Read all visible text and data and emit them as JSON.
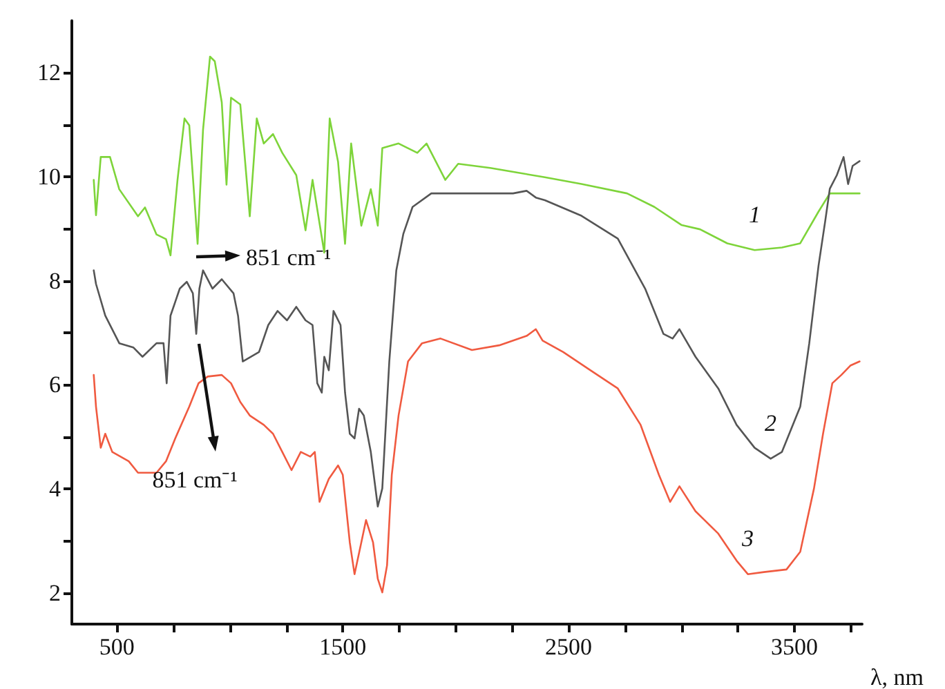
{
  "chart_data": {
    "type": "line",
    "xlabel": "λ, nm",
    "xlim": [
      300,
      3800
    ],
    "xticks": [
      500,
      {
        "value": 750,
        "label": null
      },
      {
        "value": 1000,
        "label": null
      },
      {
        "value": 1250,
        "label": null
      },
      1500,
      {
        "value": 1750,
        "label": null
      },
      {
        "value": 2000,
        "label": null
      },
      {
        "value": 2250,
        "label": null
      },
      2500,
      {
        "value": 2750,
        "label": null
      },
      {
        "value": 3000,
        "label": null
      },
      {
        "value": 3250,
        "label": null
      },
      3500,
      {
        "value": 3750,
        "label": null
      }
    ],
    "ylim": [
      1.4,
      13
    ],
    "yticks": [
      2,
      {
        "value": 3,
        "label": null
      },
      4,
      {
        "value": 5,
        "label": null
      },
      6,
      {
        "value": 7,
        "label": null
      },
      8,
      {
        "value": 9,
        "label": null
      },
      10,
      {
        "value": 11,
        "label": null
      },
      12
    ],
    "grid": false,
    "legend": false,
    "marker": "none",
    "line_style": "solid",
    "series": [
      {
        "name": "1",
        "color": "#7ed43a",
        "x": [
          397,
          407,
          428,
          469,
          510,
          593,
          624,
          675,
          717,
          737,
          768,
          799,
          820,
          857,
          881,
          912,
          933,
          964,
          985,
          1005,
          1046,
          1088,
          1119,
          1150,
          1191,
          1232,
          1294,
          1335,
          1366,
          1418,
          1442,
          1479,
          1510,
          1537,
          1582,
          1624,
          1655,
          1675,
          1747,
          1830,
          1871,
          1954,
          2011,
          2153,
          2274,
          2395,
          2557,
          2759,
          2880,
          3001,
          3082,
          3203,
          3324,
          3445,
          3526,
          3607,
          3657,
          3789
        ],
        "values": [
          9.94,
          9.26,
          10.38,
          10.38,
          9.76,
          9.24,
          9.41,
          8.89,
          8.8,
          8.49,
          9.94,
          11.12,
          10.99,
          8.71,
          10.9,
          12.31,
          12.22,
          11.43,
          9.85,
          11.52,
          11.39,
          9.24,
          11.12,
          10.64,
          10.82,
          10.46,
          10.03,
          8.97,
          9.94,
          8.54,
          11.12,
          10.29,
          8.71,
          10.64,
          9.06,
          9.76,
          9.06,
          10.55,
          10.64,
          10.46,
          10.64,
          9.94,
          10.25,
          10.17,
          10.08,
          9.99,
          9.86,
          9.68,
          9.42,
          9.07,
          8.99,
          8.72,
          8.59,
          8.64,
          8.72,
          9.33,
          9.68,
          9.68
        ]
      },
      {
        "name": "2",
        "color": "#555555",
        "x": [
          397,
          407,
          448,
          510,
          572,
          613,
          675,
          706,
          720,
          737,
          778,
          809,
          836,
          851,
          865,
          881,
          923,
          964,
          1016,
          1036,
          1057,
          1129,
          1170,
          1211,
          1253,
          1294,
          1335,
          1366,
          1387,
          1407,
          1418,
          1438,
          1459,
          1490,
          1510,
          1531,
          1552,
          1572,
          1593,
          1624,
          1655,
          1675,
          1706,
          1737,
          1768,
          1809,
          1892,
          2077,
          2254,
          2314,
          2355,
          2395,
          2557,
          2718,
          2839,
          2920,
          2961,
          2991,
          3062,
          3163,
          3244,
          3324,
          3395,
          3445,
          3526,
          3566,
          3607,
          3637,
          3657,
          3688,
          3718,
          3738,
          3758,
          3789
        ],
        "values": [
          8.2,
          7.94,
          7.33,
          6.8,
          6.72,
          6.54,
          6.8,
          6.8,
          6.03,
          7.33,
          7.85,
          7.98,
          7.76,
          6.98,
          7.85,
          8.2,
          7.85,
          8.03,
          7.76,
          7.33,
          6.45,
          6.63,
          7.15,
          7.42,
          7.24,
          7.5,
          7.24,
          7.15,
          6.03,
          5.85,
          6.54,
          6.28,
          7.42,
          7.15,
          5.85,
          5.06,
          4.97,
          5.54,
          5.41,
          4.71,
          3.66,
          4.01,
          6.45,
          8.2,
          8.9,
          9.42,
          9.68,
          9.68,
          9.68,
          9.73,
          9.6,
          9.55,
          9.25,
          8.81,
          7.85,
          6.98,
          6.89,
          7.07,
          6.54,
          5.93,
          5.23,
          4.79,
          4.58,
          4.71,
          5.58,
          6.8,
          8.29,
          9.16,
          9.77,
          10.03,
          10.38,
          9.86,
          10.21,
          10.3
        ]
      },
      {
        "name": "3",
        "color": "#f05a40",
        "x": [
          397,
          407,
          428,
          448,
          479,
          552,
          593,
          675,
          717,
          758,
          820,
          861,
          902,
          964,
          1005,
          1046,
          1088,
          1150,
          1191,
          1232,
          1273,
          1314,
          1356,
          1376,
          1397,
          1438,
          1479,
          1500,
          1531,
          1552,
          1582,
          1603,
          1634,
          1655,
          1675,
          1696,
          1717,
          1747,
          1789,
          1851,
          1933,
          2072,
          2193,
          2314,
          2355,
          2385,
          2476,
          2597,
          2718,
          2819,
          2900,
          2950,
          2991,
          3062,
          3163,
          3244,
          3294,
          3365,
          3465,
          3526,
          3587,
          3627,
          3668,
          3708,
          3748,
          3789
        ],
        "values": [
          6.19,
          5.58,
          4.79,
          5.06,
          4.71,
          4.53,
          4.31,
          4.31,
          4.53,
          4.97,
          5.58,
          6.03,
          6.16,
          6.19,
          6.03,
          5.67,
          5.41,
          5.23,
          5.06,
          4.71,
          4.36,
          4.71,
          4.62,
          4.71,
          3.75,
          4.19,
          4.45,
          4.27,
          2.97,
          2.36,
          2.97,
          3.4,
          2.97,
          2.27,
          2.01,
          2.53,
          4.27,
          5.41,
          6.45,
          6.8,
          6.89,
          6.67,
          6.76,
          6.94,
          7.07,
          6.85,
          6.63,
          6.28,
          5.93,
          5.23,
          4.27,
          3.75,
          4.05,
          3.57,
          3.14,
          2.62,
          2.36,
          2.4,
          2.45,
          2.79,
          4.01,
          5.06,
          6.03,
          6.19,
          6.37,
          6.45
        ]
      }
    ],
    "annotations": [
      "851 cm⁻¹",
      "851 cm⁻¹"
    ]
  }
}
